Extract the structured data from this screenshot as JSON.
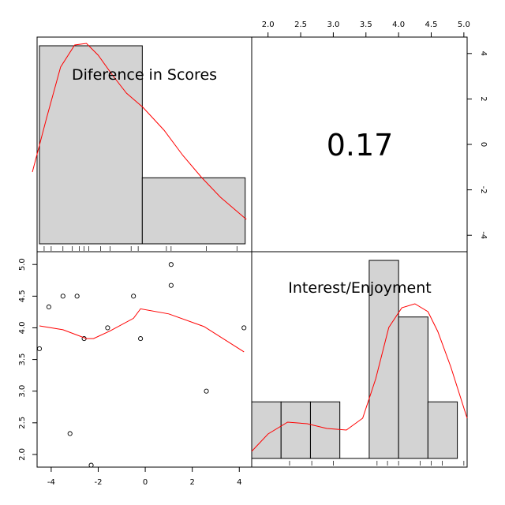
{
  "chart_data": [
    {
      "panel": "diagonal-1",
      "type": "histogram",
      "variable_label": "Diference in Scores",
      "bins": [
        {
          "from": -4.5,
          "to": -0.125,
          "count": 6
        },
        {
          "from": -0.125,
          "to": 4.25,
          "count": 2
        }
      ],
      "density_curve_color": "#ff0000",
      "bar_color": "#d3d3d3",
      "rug": [
        -4.3,
        -4.0,
        -3.5,
        -3.1,
        -2.8,
        -2.6,
        -2.4,
        -1.9,
        -1.5,
        -0.6,
        -0.3,
        0.9,
        1.1,
        2.6,
        3.9
      ]
    },
    {
      "panel": "upper-right",
      "type": "correlation",
      "value_label": "0.17",
      "value": 0.17
    },
    {
      "panel": "lower-left",
      "type": "scatter",
      "x_ticks": [
        "-4",
        "-2",
        "0",
        "2",
        "4"
      ],
      "y_ticks": [
        "2.0",
        "2.5",
        "3.0",
        "3.5",
        "4.0",
        "4.5",
        "5.0"
      ],
      "xlim": [
        -4.6,
        4.3
      ],
      "ylim": [
        1.8,
        5.1
      ],
      "points": [
        {
          "x": -4.5,
          "y": 3.67
        },
        {
          "x": -4.1,
          "y": 4.33
        },
        {
          "x": -3.5,
          "y": 4.5
        },
        {
          "x": -2.9,
          "y": 4.5
        },
        {
          "x": -3.2,
          "y": 2.33
        },
        {
          "x": -2.6,
          "y": 3.83
        },
        {
          "x": -2.3,
          "y": 1.83
        },
        {
          "x": -1.6,
          "y": 4.0
        },
        {
          "x": -0.5,
          "y": 4.5
        },
        {
          "x": -0.2,
          "y": 3.83
        },
        {
          "x": 1.1,
          "y": 5.0
        },
        {
          "x": 1.1,
          "y": 4.67
        },
        {
          "x": 2.6,
          "y": 3.0
        },
        {
          "x": 4.2,
          "y": 4.0
        }
      ],
      "smooth_line": [
        {
          "x": -4.5,
          "y": 4.03
        },
        {
          "x": -3.5,
          "y": 3.97
        },
        {
          "x": -2.5,
          "y": 3.83
        },
        {
          "x": -2.2,
          "y": 3.83
        },
        {
          "x": -1.5,
          "y": 3.95
        },
        {
          "x": -0.5,
          "y": 4.15
        },
        {
          "x": -0.2,
          "y": 4.3
        },
        {
          "x": 1.0,
          "y": 4.22
        },
        {
          "x": 2.5,
          "y": 4.02
        },
        {
          "x": 4.2,
          "y": 3.62
        }
      ],
      "smooth_color": "#ff0000"
    },
    {
      "panel": "diagonal-2",
      "type": "histogram",
      "variable_label": "Interest/Enjoyment",
      "x_ticks": [
        "2.0",
        "2.5",
        "3.0",
        "3.5",
        "4.0",
        "4.5",
        "5.0"
      ],
      "y_ticks": [
        "4",
        "2",
        "0",
        "-2",
        "-4"
      ],
      "bins": [
        {
          "from": 1.75,
          "to": 2.2,
          "count": 1
        },
        {
          "from": 2.2,
          "to": 2.65,
          "count": 1
        },
        {
          "from": 2.65,
          "to": 3.1,
          "count": 1
        },
        {
          "from": 3.1,
          "to": 3.55,
          "count": 0
        },
        {
          "from": 3.55,
          "to": 4.0,
          "count": 3.5
        },
        {
          "from": 4.0,
          "to": 4.45,
          "count": 2.5
        },
        {
          "from": 4.45,
          "to": 4.9,
          "count": 1.0
        }
      ],
      "density_curve_color": "#ff0000",
      "bar_color": "#d3d3d3",
      "rug": [
        2.33,
        2.67,
        3.0,
        3.67,
        3.83,
        4.0,
        4.33,
        4.5,
        4.67,
        5.0
      ]
    }
  ]
}
